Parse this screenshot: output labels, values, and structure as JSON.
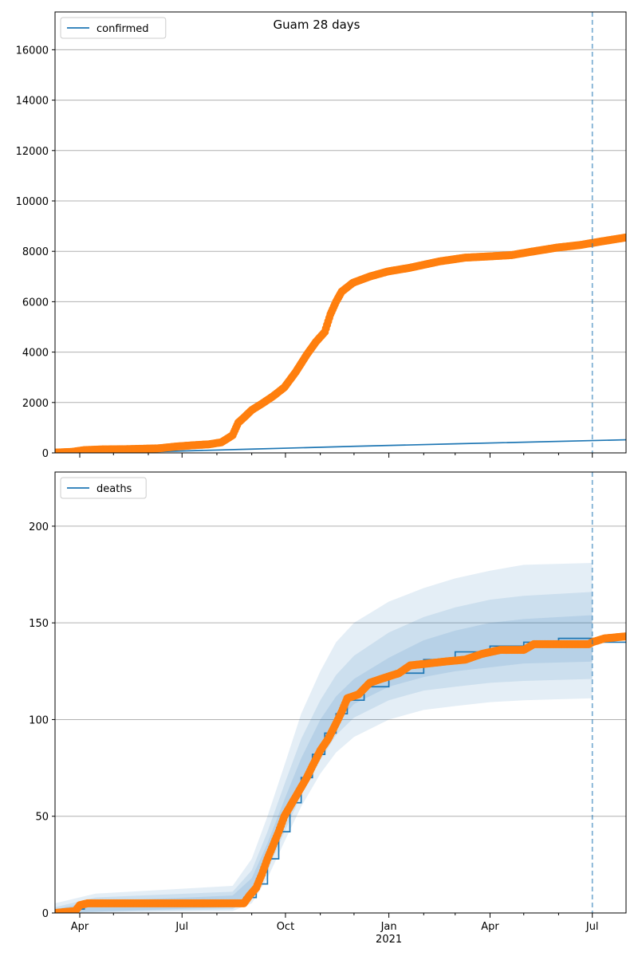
{
  "chart_data": {
    "title": "Guam 28 days",
    "x_start": "2020-03-10",
    "x_end": "2021-07-31",
    "forecast_marker": "2021-07-01",
    "x_ticks": [
      {
        "date": "2020-04-01",
        "label": "Apr"
      },
      {
        "date": "2020-07-01",
        "label": "Jul"
      },
      {
        "date": "2020-10-01",
        "label": "Oct"
      },
      {
        "date": "2021-01-01",
        "label": "Jan",
        "sublabel": "2021"
      },
      {
        "date": "2021-04-01",
        "label": "Apr"
      },
      {
        "date": "2021-07-01",
        "label": "Jul"
      }
    ],
    "x_minor_ticks": [
      "2020-05-01",
      "2020-06-01",
      "2020-08-01",
      "2020-09-01",
      "2020-11-01",
      "2020-12-01",
      "2021-02-01",
      "2021-03-01",
      "2021-05-01",
      "2021-06-01"
    ],
    "colors": {
      "model": "#1f77b4",
      "observed": "#ff7f0e",
      "band": "#1f77b4",
      "grid": "#b0b0b0"
    },
    "panels": [
      {
        "type": "line",
        "legend": "confirmed",
        "legend_position": "top-left",
        "ylim": [
          0,
          17500
        ],
        "y_ticks": [
          0,
          2000,
          4000,
          6000,
          8000,
          10000,
          12000,
          14000,
          16000
        ],
        "y_tick_labels": [
          "0",
          "2000",
          "4000",
          "6000",
          "8000",
          "10000",
          "12000",
          "14000",
          "16000"
        ],
        "grid": "y",
        "model_line": [
          {
            "x": "2020-03-10",
            "y": 10
          },
          {
            "x": "2020-06-01",
            "y": 40
          },
          {
            "x": "2020-09-01",
            "y": 150
          },
          {
            "x": "2020-12-01",
            "y": 260
          },
          {
            "x": "2021-03-01",
            "y": 360
          },
          {
            "x": "2021-07-31",
            "y": 520
          }
        ],
        "observed": [
          {
            "x": "2020-03-10",
            "y": 10
          },
          {
            "x": "2020-03-25",
            "y": 40
          },
          {
            "x": "2020-04-05",
            "y": 110
          },
          {
            "x": "2020-04-20",
            "y": 136
          },
          {
            "x": "2020-05-15",
            "y": 150
          },
          {
            "x": "2020-06-10",
            "y": 180
          },
          {
            "x": "2020-06-25",
            "y": 250
          },
          {
            "x": "2020-07-10",
            "y": 300
          },
          {
            "x": "2020-07-25",
            "y": 340
          },
          {
            "x": "2020-08-05",
            "y": 420
          },
          {
            "x": "2020-08-15",
            "y": 700
          },
          {
            "x": "2020-08-20",
            "y": 1200
          },
          {
            "x": "2020-08-25",
            "y": 1400
          },
          {
            "x": "2020-09-01",
            "y": 1700
          },
          {
            "x": "2020-09-10",
            "y": 1950
          },
          {
            "x": "2020-09-20",
            "y": 2250
          },
          {
            "x": "2020-09-30",
            "y": 2600
          },
          {
            "x": "2020-10-10",
            "y": 3200
          },
          {
            "x": "2020-10-20",
            "y": 3900
          },
          {
            "x": "2020-10-28",
            "y": 4400
          },
          {
            "x": "2020-11-05",
            "y": 4800
          },
          {
            "x": "2020-11-10",
            "y": 5500
          },
          {
            "x": "2020-11-15",
            "y": 6000
          },
          {
            "x": "2020-11-20",
            "y": 6400
          },
          {
            "x": "2020-11-30",
            "y": 6750
          },
          {
            "x": "2020-12-15",
            "y": 7000
          },
          {
            "x": "2020-12-31",
            "y": 7200
          },
          {
            "x": "2021-01-20",
            "y": 7350
          },
          {
            "x": "2021-02-15",
            "y": 7600
          },
          {
            "x": "2021-03-10",
            "y": 7750
          },
          {
            "x": "2021-04-01",
            "y": 7800
          },
          {
            "x": "2021-04-20",
            "y": 7850
          },
          {
            "x": "2021-05-10",
            "y": 8000
          },
          {
            "x": "2021-05-31",
            "y": 8150
          },
          {
            "x": "2021-06-20",
            "y": 8250
          },
          {
            "x": "2021-07-10",
            "y": 8400
          },
          {
            "x": "2021-07-31",
            "y": 8550
          }
        ]
      },
      {
        "type": "line",
        "legend": "deaths",
        "legend_position": "top-left",
        "ylim": [
          0,
          228
        ],
        "y_ticks": [
          0,
          50,
          100,
          150,
          200
        ],
        "y_tick_labels": [
          "0",
          "50",
          "100",
          "150",
          "200"
        ],
        "grid": "y",
        "model_line": [
          {
            "x": "2020-03-10",
            "y": 1
          },
          {
            "x": "2020-03-25",
            "y": 2
          },
          {
            "x": "2020-04-05",
            "y": 4
          },
          {
            "x": "2020-04-15",
            "y": 5
          },
          {
            "x": "2020-08-15",
            "y": 6
          },
          {
            "x": "2020-08-25",
            "y": 8
          },
          {
            "x": "2020-09-05",
            "y": 15
          },
          {
            "x": "2020-09-15",
            "y": 28
          },
          {
            "x": "2020-09-25",
            "y": 42
          },
          {
            "x": "2020-10-05",
            "y": 57
          },
          {
            "x": "2020-10-15",
            "y": 70
          },
          {
            "x": "2020-10-25",
            "y": 82
          },
          {
            "x": "2020-11-05",
            "y": 93
          },
          {
            "x": "2020-11-15",
            "y": 103
          },
          {
            "x": "2020-11-25",
            "y": 110
          },
          {
            "x": "2020-12-10",
            "y": 117
          },
          {
            "x": "2021-01-01",
            "y": 124
          },
          {
            "x": "2021-02-01",
            "y": 131
          },
          {
            "x": "2021-03-01",
            "y": 135
          },
          {
            "x": "2021-04-01",
            "y": 138
          },
          {
            "x": "2021-05-01",
            "y": 140
          },
          {
            "x": "2021-06-01",
            "y": 142
          },
          {
            "x": "2021-07-01",
            "y": 142
          },
          {
            "x": "2021-07-03",
            "y": 140
          },
          {
            "x": "2021-07-31",
            "y": 140
          }
        ],
        "bands": [
          {
            "lower": [
              {
                "x": "2020-03-10",
                "y": 0
              },
              {
                "x": "2020-08-15",
                "y": 1
              },
              {
                "x": "2020-09-01",
                "y": 5
              },
              {
                "x": "2020-09-15",
                "y": 18
              },
              {
                "x": "2020-10-01",
                "y": 38
              },
              {
                "x": "2020-10-15",
                "y": 55
              },
              {
                "x": "2020-11-01",
                "y": 72
              },
              {
                "x": "2020-11-15",
                "y": 83
              },
              {
                "x": "2020-12-01",
                "y": 91
              },
              {
                "x": "2021-01-01",
                "y": 100
              },
              {
                "x": "2021-02-01",
                "y": 105
              },
              {
                "x": "2021-03-01",
                "y": 107
              },
              {
                "x": "2021-04-01",
                "y": 109
              },
              {
                "x": "2021-05-01",
                "y": 110
              },
              {
                "x": "2021-07-01",
                "y": 111
              }
            ],
            "upper": [
              {
                "x": "2020-03-10",
                "y": 5
              },
              {
                "x": "2020-04-15",
                "y": 10
              },
              {
                "x": "2020-08-15",
                "y": 14
              },
              {
                "x": "2020-09-01",
                "y": 28
              },
              {
                "x": "2020-09-15",
                "y": 50
              },
              {
                "x": "2020-10-01",
                "y": 78
              },
              {
                "x": "2020-10-15",
                "y": 103
              },
              {
                "x": "2020-11-01",
                "y": 125
              },
              {
                "x": "2020-11-15",
                "y": 140
              },
              {
                "x": "2020-12-01",
                "y": 150
              },
              {
                "x": "2021-01-01",
                "y": 161
              },
              {
                "x": "2021-02-01",
                "y": 168
              },
              {
                "x": "2021-03-01",
                "y": 173
              },
              {
                "x": "2021-04-01",
                "y": 177
              },
              {
                "x": "2021-05-01",
                "y": 180
              },
              {
                "x": "2021-07-01",
                "y": 181
              }
            ]
          },
          {
            "lower": [
              {
                "x": "2020-03-10",
                "y": 0
              },
              {
                "x": "2020-08-15",
                "y": 2
              },
              {
                "x": "2020-09-01",
                "y": 8
              },
              {
                "x": "2020-09-15",
                "y": 22
              },
              {
                "x": "2020-10-01",
                "y": 43
              },
              {
                "x": "2020-10-15",
                "y": 61
              },
              {
                "x": "2020-11-01",
                "y": 79
              },
              {
                "x": "2020-11-15",
                "y": 92
              },
              {
                "x": "2020-12-01",
                "y": 101
              },
              {
                "x": "2021-01-01",
                "y": 110
              },
              {
                "x": "2021-02-01",
                "y": 115
              },
              {
                "x": "2021-03-01",
                "y": 117
              },
              {
                "x": "2021-04-01",
                "y": 119
              },
              {
                "x": "2021-05-01",
                "y": 120
              },
              {
                "x": "2021-07-01",
                "y": 121
              }
            ],
            "upper": [
              {
                "x": "2020-03-10",
                "y": 3
              },
              {
                "x": "2020-04-15",
                "y": 8
              },
              {
                "x": "2020-08-15",
                "y": 11
              },
              {
                "x": "2020-09-01",
                "y": 22
              },
              {
                "x": "2020-09-15",
                "y": 42
              },
              {
                "x": "2020-10-01",
                "y": 68
              },
              {
                "x": "2020-10-15",
                "y": 90
              },
              {
                "x": "2020-11-01",
                "y": 110
              },
              {
                "x": "2020-11-15",
                "y": 123
              },
              {
                "x": "2020-12-01",
                "y": 133
              },
              {
                "x": "2021-01-01",
                "y": 145
              },
              {
                "x": "2021-02-01",
                "y": 153
              },
              {
                "x": "2021-03-01",
                "y": 158
              },
              {
                "x": "2021-04-01",
                "y": 162
              },
              {
                "x": "2021-05-01",
                "y": 164
              },
              {
                "x": "2021-07-01",
                "y": 166
              }
            ]
          },
          {
            "lower": [
              {
                "x": "2020-03-10",
                "y": 0
              },
              {
                "x": "2020-08-15",
                "y": 3
              },
              {
                "x": "2020-09-01",
                "y": 10
              },
              {
                "x": "2020-09-15",
                "y": 25
              },
              {
                "x": "2020-10-01",
                "y": 47
              },
              {
                "x": "2020-10-15",
                "y": 66
              },
              {
                "x": "2020-11-01",
                "y": 85
              },
              {
                "x": "2020-11-15",
                "y": 98
              },
              {
                "x": "2020-12-01",
                "y": 108
              },
              {
                "x": "2021-01-01",
                "y": 117
              },
              {
                "x": "2021-02-01",
                "y": 122
              },
              {
                "x": "2021-03-01",
                "y": 125
              },
              {
                "x": "2021-04-01",
                "y": 127
              },
              {
                "x": "2021-05-01",
                "y": 129
              },
              {
                "x": "2021-07-01",
                "y": 130
              }
            ],
            "upper": [
              {
                "x": "2020-03-10",
                "y": 2
              },
              {
                "x": "2020-04-15",
                "y": 6
              },
              {
                "x": "2020-08-15",
                "y": 9
              },
              {
                "x": "2020-09-01",
                "y": 18
              },
              {
                "x": "2020-09-15",
                "y": 36
              },
              {
                "x": "2020-10-01",
                "y": 60
              },
              {
                "x": "2020-10-15",
                "y": 80
              },
              {
                "x": "2020-11-01",
                "y": 100
              },
              {
                "x": "2020-11-15",
                "y": 112
              },
              {
                "x": "2020-12-01",
                "y": 121
              },
              {
                "x": "2021-01-01",
                "y": 132
              },
              {
                "x": "2021-02-01",
                "y": 141
              },
              {
                "x": "2021-03-01",
                "y": 146
              },
              {
                "x": "2021-04-01",
                "y": 150
              },
              {
                "x": "2021-05-01",
                "y": 152
              },
              {
                "x": "2021-07-01",
                "y": 154
              }
            ]
          }
        ],
        "observed": [
          {
            "x": "2020-03-10",
            "y": 0
          },
          {
            "x": "2020-03-28",
            "y": 1
          },
          {
            "x": "2020-04-01",
            "y": 4
          },
          {
            "x": "2020-04-08",
            "y": 5
          },
          {
            "x": "2020-08-25",
            "y": 5
          },
          {
            "x": "2020-08-30",
            "y": 9
          },
          {
            "x": "2020-09-05",
            "y": 13
          },
          {
            "x": "2020-09-10",
            "y": 20
          },
          {
            "x": "2020-09-15",
            "y": 28
          },
          {
            "x": "2020-09-20",
            "y": 35
          },
          {
            "x": "2020-09-25",
            "y": 42
          },
          {
            "x": "2020-09-30",
            "y": 50
          },
          {
            "x": "2020-10-05",
            "y": 55
          },
          {
            "x": "2020-10-10",
            "y": 60
          },
          {
            "x": "2020-10-15",
            "y": 65
          },
          {
            "x": "2020-10-20",
            "y": 70
          },
          {
            "x": "2020-10-25",
            "y": 76
          },
          {
            "x": "2020-11-01",
            "y": 84
          },
          {
            "x": "2020-11-08",
            "y": 90
          },
          {
            "x": "2020-11-15",
            "y": 98
          },
          {
            "x": "2020-11-20",
            "y": 104
          },
          {
            "x": "2020-11-25",
            "y": 111
          },
          {
            "x": "2020-12-05",
            "y": 113
          },
          {
            "x": "2020-12-15",
            "y": 119
          },
          {
            "x": "2020-12-25",
            "y": 121
          },
          {
            "x": "2021-01-10",
            "y": 124
          },
          {
            "x": "2021-01-20",
            "y": 128
          },
          {
            "x": "2021-02-05",
            "y": 129
          },
          {
            "x": "2021-02-20",
            "y": 130
          },
          {
            "x": "2021-03-10",
            "y": 131
          },
          {
            "x": "2021-03-25",
            "y": 134
          },
          {
            "x": "2021-04-10",
            "y": 136
          },
          {
            "x": "2021-05-01",
            "y": 136
          },
          {
            "x": "2021-05-10",
            "y": 139
          },
          {
            "x": "2021-06-10",
            "y": 139
          },
          {
            "x": "2021-06-28",
            "y": 139
          },
          {
            "x": "2021-07-01",
            "y": 140
          },
          {
            "x": "2021-07-12",
            "y": 142
          },
          {
            "x": "2021-07-31",
            "y": 143
          }
        ]
      }
    ]
  }
}
